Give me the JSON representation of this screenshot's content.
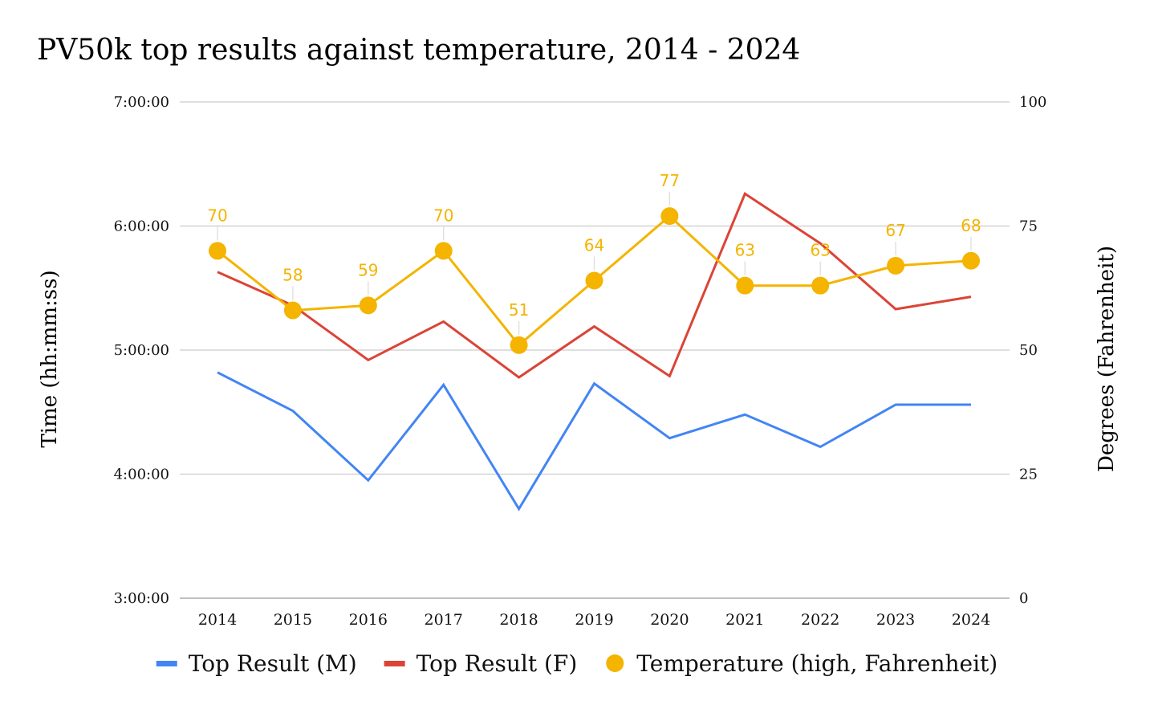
{
  "chart_data": {
    "type": "line",
    "title": "PV50k top results against temperature, 2014 - 2024",
    "ylabel_left": "Time (hh:mm:ss)",
    "ylabel_right": "Degrees (Fahrenheit)",
    "y_left_ticks": [
      "3:00:00",
      "4:00:00",
      "5:00:00",
      "6:00:00",
      "7:00:00"
    ],
    "y_left_range_hours": [
      3,
      7
    ],
    "y_right_ticks": [
      "0",
      "25",
      "50",
      "75",
      "100"
    ],
    "y_right_range": [
      0,
      100
    ],
    "grid": true,
    "legend_position": "bottom",
    "categories": [
      "2014",
      "2015",
      "2016",
      "2017",
      "2018",
      "2019",
      "2020",
      "2021",
      "2022",
      "2023",
      "2024"
    ],
    "series": [
      {
        "name": "Top Result (M)",
        "axis": "left",
        "color": "#4285f4",
        "style": "line",
        "values_hours": [
          4.82,
          4.51,
          3.95,
          4.72,
          3.72,
          4.73,
          4.29,
          4.48,
          4.22,
          4.56,
          4.56
        ]
      },
      {
        "name": "Top Result (F)",
        "axis": "left",
        "color": "#db4437",
        "style": "line",
        "values_hours": [
          5.63,
          5.36,
          4.92,
          5.23,
          4.78,
          5.19,
          4.79,
          6.26,
          5.86,
          5.33,
          5.43
        ]
      },
      {
        "name": "Temperature (high, Fahrenheit)",
        "axis": "right",
        "color": "#f4b400",
        "style": "line-markers-labels",
        "values": [
          70,
          58,
          59,
          70,
          51,
          64,
          77,
          63,
          63,
          67,
          68
        ]
      }
    ]
  }
}
